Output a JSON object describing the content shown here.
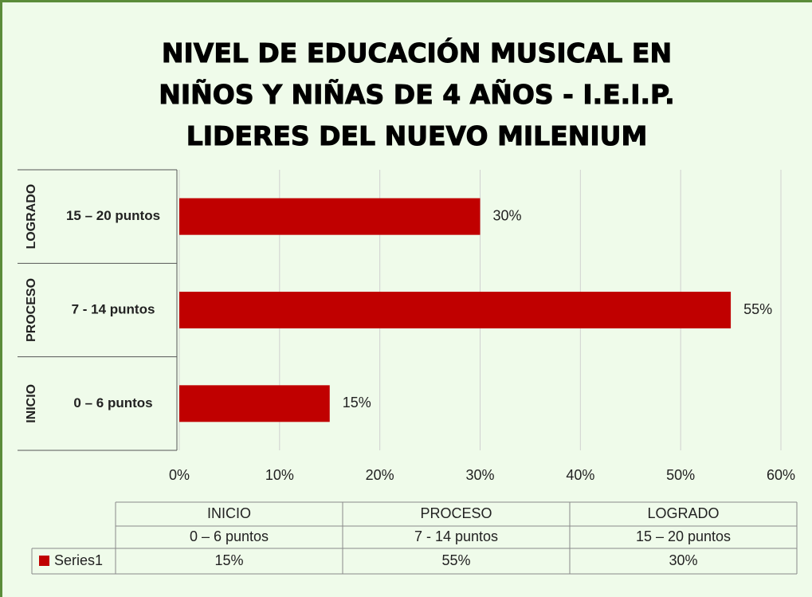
{
  "chart_data": {
    "type": "bar",
    "orientation": "horizontal",
    "title": [
      "NIVEL DE EDUCACIÓN MUSICAL EN",
      "NIÑOS Y NIÑAS DE 4 AÑOS - I.E.I.P.",
      "LIDERES DEL NUEVO MILENIUM"
    ],
    "groups": [
      "INICIO",
      "PROCESO",
      "LOGRADO"
    ],
    "categories": [
      "0 – 6 puntos",
      "7 -  14 puntos",
      "15 – 20 puntos"
    ],
    "series": [
      {
        "name": "Series1",
        "color": "#c00000",
        "values": [
          15,
          55,
          30
        ],
        "value_labels": [
          "15%",
          "55%",
          "30%"
        ]
      }
    ],
    "xlim": [
      0,
      60
    ],
    "xticks": [
      {
        "value": 0,
        "label": "0%"
      },
      {
        "value": 10,
        "label": "10%"
      },
      {
        "value": 20,
        "label": "20%"
      },
      {
        "value": 30,
        "label": "30%"
      },
      {
        "value": 40,
        "label": "40%"
      },
      {
        "value": 50,
        "label": "50%"
      },
      {
        "value": 60,
        "label": "60%"
      }
    ],
    "grid": true,
    "data_table": true
  }
}
